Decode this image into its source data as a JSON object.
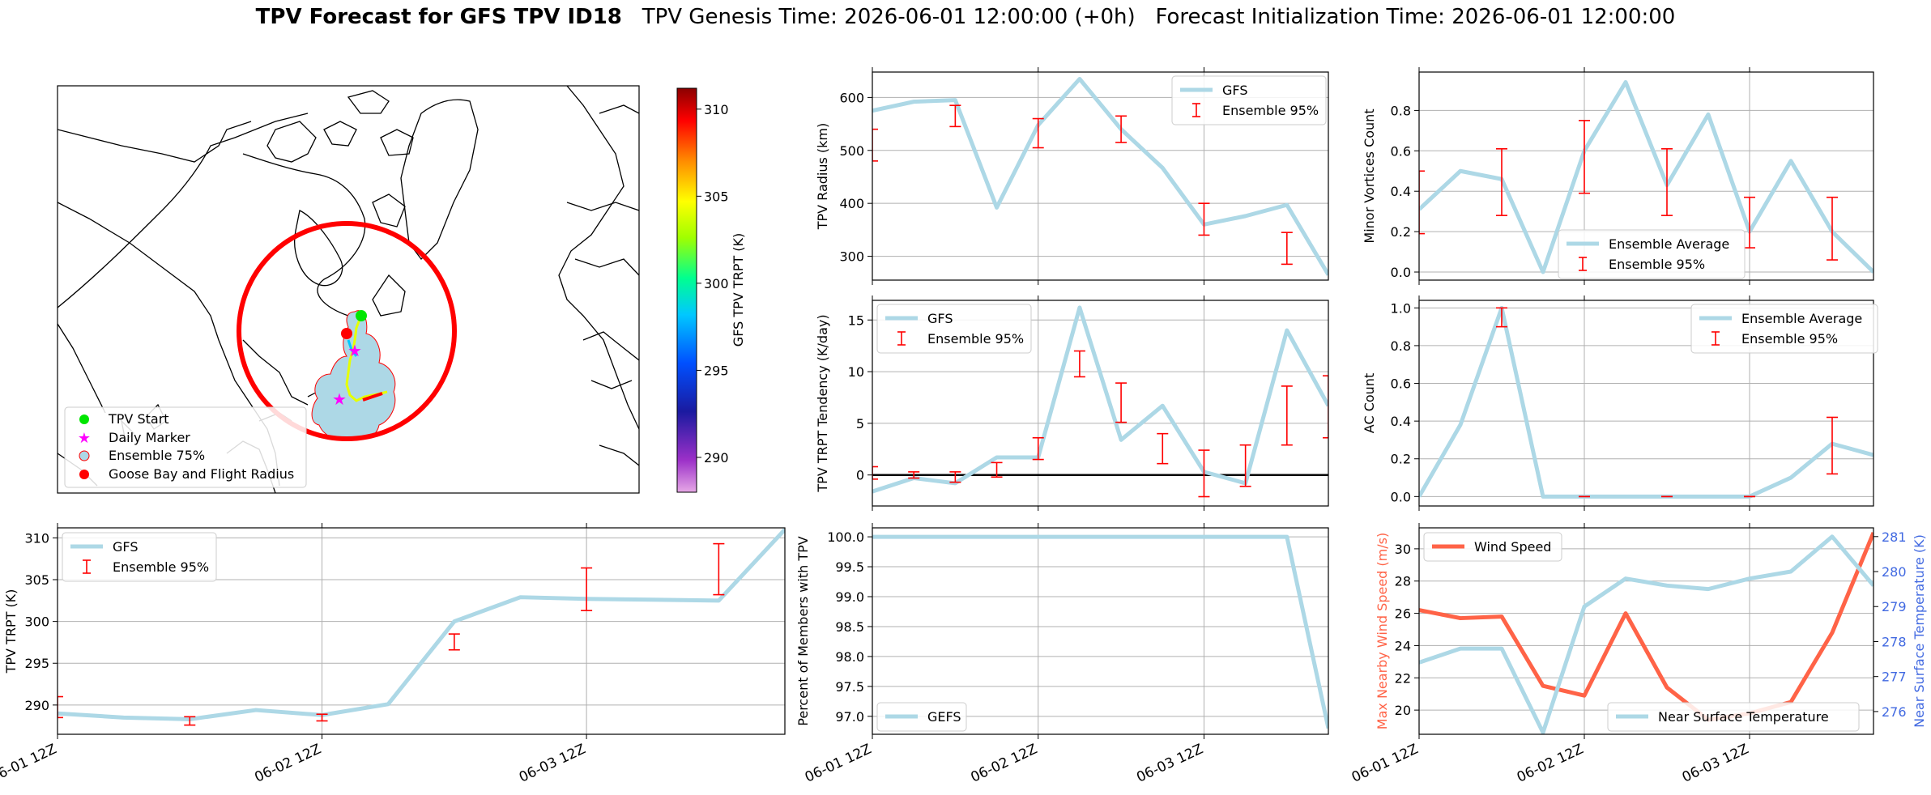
{
  "header": {
    "title_bold": "TPV Forecast for GFS TPV ID18",
    "genesis": "TPV Genesis Time: 2026-06-01 12:00:00 (+0h)",
    "init": "Forecast Initialization Time: 2026-06-01 12:00:00"
  },
  "colors": {
    "gfs_line": "#add8e6",
    "errorbar": "#ff0000",
    "wind": "#ff6347",
    "temp_axis": "#4169e1",
    "grid": "#b0b0b0"
  },
  "map": {
    "colorbar_label": "GFS TPV TRPT (K)",
    "colorbar_ticks": [
      290,
      295,
      300,
      305,
      310
    ],
    "colorbar_range": [
      288,
      311.2
    ],
    "legend": [
      "TPV Start",
      "Daily Marker",
      "Ensemble 75%",
      "Goose Bay and Flight Radius"
    ]
  },
  "chart_data": [
    {
      "id": "radius",
      "type": "line",
      "ylabel": "TPV Radius (km)",
      "x": [
        0,
        0.25,
        0.5,
        0.75,
        1.0,
        1.25,
        1.5,
        1.75,
        2.0,
        2.25,
        2.5,
        2.75
      ],
      "xlim": [
        0,
        2.75
      ],
      "ylim": [
        255,
        648
      ],
      "yticks": [
        300,
        400,
        500,
        600
      ],
      "series": [
        {
          "name": "GFS",
          "values": [
            575,
            592,
            595,
            392,
            548,
            635,
            540,
            467,
            360,
            376,
            397,
            265
          ]
        }
      ],
      "errorbars": {
        "name": "Ensemble 95%",
        "x": [
          0,
          0.5,
          1.0,
          1.5,
          2.0,
          2.5
        ],
        "low": [
          480,
          545,
          505,
          515,
          340,
          285
        ],
        "high": [
          540,
          585,
          560,
          565,
          400,
          345
        ]
      },
      "legend": "top-right"
    },
    {
      "id": "minor",
      "type": "line",
      "ylabel": "Minor Vortices Count",
      "x": [
        0,
        0.25,
        0.5,
        0.75,
        1.0,
        1.25,
        1.5,
        1.75,
        2.0,
        2.25,
        2.5,
        2.75
      ],
      "xlim": [
        0,
        2.75
      ],
      "ylim": [
        -0.04,
        0.99
      ],
      "yticks": [
        0.0,
        0.2,
        0.4,
        0.6,
        0.8
      ],
      "series": [
        {
          "name": "Ensemble Average",
          "values": [
            0.31,
            0.5,
            0.46,
            0.0,
            0.6,
            0.94,
            0.43,
            0.78,
            0.2,
            0.55,
            0.2,
            0.0
          ]
        }
      ],
      "errorbars": {
        "name": "Ensemble 95%",
        "x": [
          0,
          0.5,
          1.0,
          1.5,
          2.0,
          2.5
        ],
        "low": [
          0.19,
          0.28,
          0.39,
          0.28,
          0.12,
          0.06
        ],
        "high": [
          0.5,
          0.61,
          0.75,
          0.61,
          0.37,
          0.37
        ]
      },
      "legend": "bottom-center"
    },
    {
      "id": "tendency",
      "type": "line",
      "ylabel": "TPV TRPT Tendency (K/day)",
      "x": [
        0,
        0.25,
        0.5,
        0.75,
        1.0,
        1.25,
        1.5,
        1.75,
        2.0,
        2.25,
        2.5,
        2.75
      ],
      "xlim": [
        0,
        2.75
      ],
      "ylim": [
        -3.0,
        16.9
      ],
      "yticks": [
        0,
        5,
        10,
        15
      ],
      "zero_line": true,
      "series": [
        {
          "name": "GFS",
          "values": [
            -1.6,
            -0.3,
            -0.8,
            1.7,
            1.7,
            16.2,
            3.4,
            6.7,
            0.3,
            -0.8,
            14.0,
            6.7
          ]
        }
      ],
      "errorbars": {
        "name": "Ensemble 95%",
        "x": [
          0,
          0.25,
          0.5,
          0.75,
          1.0,
          1.25,
          1.5,
          1.75,
          2.0,
          2.25,
          2.5,
          2.75
        ],
        "low": [
          -0.4,
          -0.3,
          -0.7,
          -0.2,
          1.5,
          9.5,
          5.1,
          1.1,
          -2.1,
          -1.1,
          2.9,
          3.6
        ],
        "high": [
          0.8,
          0.3,
          0.3,
          1.2,
          3.6,
          12.0,
          8.9,
          4.0,
          2.4,
          2.9,
          8.6,
          9.6
        ]
      },
      "legend": "top-left"
    },
    {
      "id": "ac",
      "type": "line",
      "ylabel": "AC Count",
      "x": [
        0,
        0.25,
        0.5,
        0.75,
        1.0,
        1.25,
        1.5,
        1.75,
        2.0,
        2.25,
        2.5,
        2.75
      ],
      "xlim": [
        0,
        2.75
      ],
      "ylim": [
        -0.05,
        1.04
      ],
      "yticks": [
        0.0,
        0.2,
        0.4,
        0.6,
        0.8,
        1.0
      ],
      "series": [
        {
          "name": "Ensemble Average",
          "values": [
            0.0,
            0.38,
            1.0,
            0.0,
            0.0,
            0.0,
            0.0,
            0.0,
            0.0,
            0.1,
            0.28,
            0.22
          ]
        }
      ],
      "errorbars": {
        "name": "Ensemble 95%",
        "x": [
          0.5,
          1.0,
          1.5,
          2.0,
          2.5
        ],
        "low": [
          0.9,
          0.0,
          0.0,
          0.0,
          0.12
        ],
        "high": [
          1.0,
          0.0,
          0.0,
          0.0,
          0.42
        ]
      },
      "legend": "top-right"
    },
    {
      "id": "trpt",
      "type": "line",
      "ylabel": "TPV TRPT (K)",
      "x": [
        0,
        0.25,
        0.5,
        0.75,
        1.0,
        1.25,
        1.5,
        1.75,
        2.0,
        2.25,
        2.5,
        2.75
      ],
      "xlim": [
        0,
        2.75
      ],
      "ylim": [
        286.5,
        311.2
      ],
      "yticks": [
        290,
        295,
        300,
        305,
        310
      ],
      "xticks": [
        0,
        1,
        2
      ],
      "xticklabels": [
        "06-01 12Z",
        "06-02 12Z",
        "06-03 12Z"
      ],
      "series": [
        {
          "name": "GFS",
          "values": [
            289.0,
            288.5,
            288.3,
            289.4,
            288.8,
            290.1,
            300.0,
            302.9,
            302.7,
            302.6,
            302.5,
            311.0
          ]
        }
      ],
      "errorbars": {
        "name": "Ensemble 95%",
        "x": [
          0,
          0.5,
          1.0,
          1.5,
          2.0,
          2.5
        ],
        "low": [
          288.5,
          287.6,
          288.1,
          296.6,
          301.3,
          303.2
        ],
        "high": [
          291.0,
          288.6,
          288.9,
          298.5,
          306.4,
          309.3
        ]
      },
      "legend": "top-left"
    },
    {
      "id": "percent",
      "type": "line",
      "ylabel": "Percent of Members with TPV",
      "x": [
        0,
        0.25,
        0.5,
        0.75,
        1.0,
        1.25,
        1.5,
        1.75,
        2.0,
        2.25,
        2.5,
        2.75
      ],
      "xlim": [
        0,
        2.75
      ],
      "ylim": [
        96.7,
        100.15
      ],
      "yticks": [
        97.0,
        97.5,
        98.0,
        98.5,
        99.0,
        99.5,
        100.0
      ],
      "xticks": [
        0,
        1,
        2
      ],
      "xticklabels": [
        "06-01 12Z",
        "06-02 12Z",
        "06-03 12Z"
      ],
      "series": [
        {
          "name": "GEFS",
          "values": [
            100,
            100,
            100,
            100,
            100,
            100,
            100,
            100,
            100,
            100,
            100,
            96.8
          ]
        }
      ],
      "legend": "bottom-left"
    },
    {
      "id": "wind",
      "type": "line",
      "ylabel": "Max Nearby Wind Speed (m/s)",
      "ylabel2": "Near Surface Temperature (K)",
      "x": [
        0,
        0.25,
        0.5,
        0.75,
        1.0,
        1.25,
        1.5,
        1.75,
        2.0,
        2.25,
        2.5,
        2.75
      ],
      "xlim": [
        0,
        2.75
      ],
      "ylim": [
        18.5,
        31.3
      ],
      "yticks": [
        20,
        22,
        24,
        26,
        28,
        30
      ],
      "ylim2": [
        275.35,
        281.25
      ],
      "yticks2": [
        276,
        277,
        278,
        279,
        280,
        281
      ],
      "xticks": [
        0,
        1,
        2
      ],
      "xticklabels": [
        "06-01 12Z",
        "06-02 12Z",
        "06-03 12Z"
      ],
      "series": [
        {
          "name": "Wind Speed",
          "axis": "left",
          "values": [
            26.2,
            25.7,
            25.8,
            21.5,
            20.9,
            26.0,
            21.4,
            19.4,
            19.8,
            20.5,
            24.8,
            31.0
          ]
        },
        {
          "name": "Near Surface Temperature",
          "axis": "right",
          "values": [
            277.4,
            277.8,
            277.8,
            275.4,
            279.0,
            279.8,
            279.6,
            279.5,
            279.8,
            280.0,
            281.0,
            279.6
          ]
        }
      ],
      "legend": "top-left / bottom-right"
    }
  ]
}
